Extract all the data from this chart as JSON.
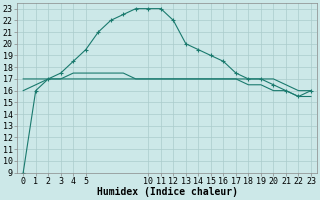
{
  "xlabel": "Humidex (Indice chaleur)",
  "hours": [
    0,
    1,
    2,
    3,
    4,
    5,
    6,
    7,
    8,
    9,
    10,
    11,
    12,
    13,
    14,
    15,
    16,
    17,
    18,
    19,
    20,
    21,
    22,
    23
  ],
  "line1_y": [
    9,
    16,
    17,
    17.5,
    18.5,
    19.5,
    21,
    22,
    22.5,
    23,
    23,
    23,
    22,
    20,
    19.5,
    19,
    18.5,
    17.5,
    17,
    17,
    16.5,
    16,
    15.5,
    16
  ],
  "line2_y": [
    17,
    17,
    17,
    17,
    17.5,
    17.5,
    17.5,
    17.5,
    17.5,
    17,
    17,
    17,
    17,
    17,
    17,
    17,
    17,
    17,
    17,
    17,
    17,
    16.5,
    16,
    16
  ],
  "line3_y": [
    16,
    16.5,
    17,
    17,
    17,
    17,
    17,
    17,
    17,
    17,
    17,
    17,
    17,
    17,
    17,
    17,
    17,
    17,
    16.5,
    16.5,
    16,
    16,
    15.5,
    15.5
  ],
  "line_color": "#1a7a6e",
  "bg_color": "#cce8e8",
  "grid_color": "#aacccc",
  "ylim": [
    9,
    23
  ],
  "xlim": [
    0,
    23
  ],
  "yticks": [
    9,
    10,
    11,
    12,
    13,
    14,
    15,
    16,
    17,
    18,
    19,
    20,
    21,
    22,
    23
  ],
  "xticks": [
    0,
    1,
    2,
    3,
    4,
    5,
    10,
    11,
    12,
    13,
    14,
    15,
    16,
    17,
    18,
    19,
    20,
    21,
    22,
    23
  ],
  "xlabel_fontsize": 7,
  "tick_fontsize": 6
}
